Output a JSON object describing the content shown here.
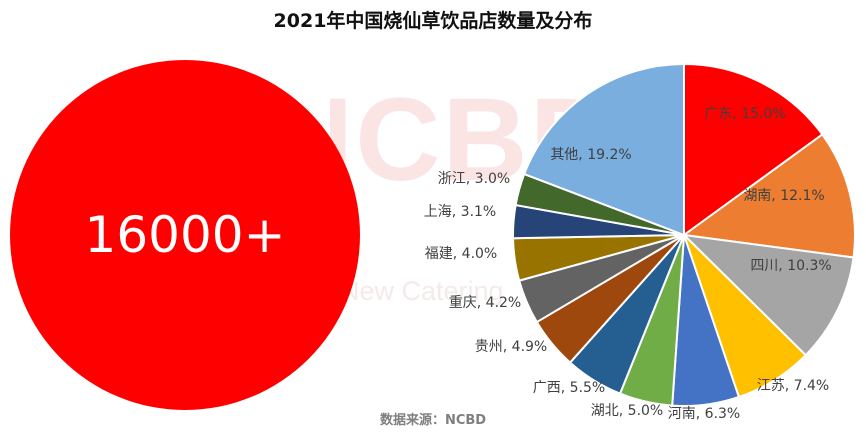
{
  "watermark": {
    "logo": "NCBD",
    "subtitle": "New Catering"
  },
  "highlight": {
    "value": "16000+",
    "color": "#ff0000"
  },
  "source": "数据来源：NCBD",
  "chart_data": {
    "type": "pie",
    "title": "2021年中国烧仙草饮品店数量及分布",
    "unit": "%",
    "start": "12 o'clock, clockwise",
    "slices": [
      {
        "label": "广东",
        "value": 15.0,
        "text": "广东, 15.0%",
        "color": "#ff0000"
      },
      {
        "label": "湖南",
        "value": 12.1,
        "text": "湖南, 12.1%",
        "color": "#ed7d31"
      },
      {
        "label": "四川",
        "value": 10.3,
        "text": "四川, 10.3%",
        "color": "#a5a5a5"
      },
      {
        "label": "江苏",
        "value": 7.4,
        "text": "江苏, 7.4%",
        "color": "#ffc000"
      },
      {
        "label": "河南",
        "value": 6.3,
        "text": "河南, 6.3%",
        "color": "#4472c4"
      },
      {
        "label": "湖北",
        "value": 5.0,
        "text": "湖北, 5.0%",
        "color": "#70ad47"
      },
      {
        "label": "广西",
        "value": 5.5,
        "text": "广西, 5.5%",
        "color": "#255e91"
      },
      {
        "label": "贵州",
        "value": 4.9,
        "text": "贵州, 4.9%",
        "color": "#9e480e"
      },
      {
        "label": "重庆",
        "value": 4.2,
        "text": "重庆, 4.2%",
        "color": "#636363"
      },
      {
        "label": "福建",
        "value": 4.0,
        "text": "福建, 4.0%",
        "color": "#997300"
      },
      {
        "label": "上海",
        "value": 3.1,
        "text": "上海, 3.1%",
        "color": "#264478"
      },
      {
        "label": "浙江",
        "value": 3.0,
        "text": "浙江, 3.0%",
        "color": "#43682b"
      },
      {
        "label": "其他",
        "value": 19.2,
        "text": "其他, 19.2%",
        "color": "#7aaedf"
      }
    ]
  }
}
